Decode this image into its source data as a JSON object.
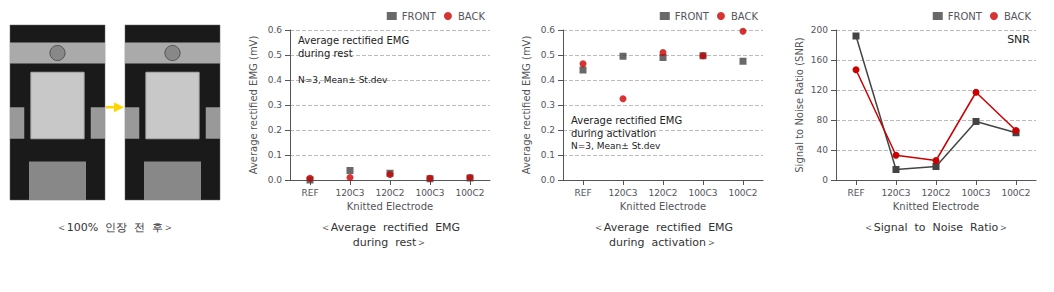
{
  "annotations": [
    "＜100%  인장  전  후＞"
  ],
  "chart_data": [
    {
      "type": "scatter",
      "title": "Average rectified EMG\nduring rest",
      "subtitle": "＜Average  rectified  EMG\nduring  rest＞",
      "annotations": [
        "N=3, Mean± St.dev"
      ],
      "xlabel": "Knitted Electrode",
      "ylabel": "Average rectified EMG (mV)",
      "categories": [
        "REF",
        "120C3",
        "120C2",
        "100C3",
        "100C2"
      ],
      "series": [
        {
          "name": "FRONT",
          "color": "#444444",
          "marker": "square",
          "values": [
            0.0,
            0.038,
            0.027,
            0.005,
            0.008
          ]
        },
        {
          "name": "BACK",
          "color": "#cc0000",
          "marker": "circle",
          "values": [
            0.007,
            0.01,
            0.022,
            0.007,
            0.01
          ]
        }
      ],
      "ylim": [
        0.0,
        0.6
      ],
      "yticks": [
        {
          "value": 0,
          "label": "0.0"
        },
        0.1,
        0.2,
        0.3,
        0.4,
        0.5,
        0.6
      ],
      "grid": true,
      "legend": "upper right"
    },
    {
      "type": "scatter",
      "title": "Average rectified EMG\nduring activation",
      "subtitle": "＜Average  rectified  EMG\nduring  activation＞",
      "annotations": [
        "N=3, Mean± St.dev"
      ],
      "xlabel": "Knitted Electrode",
      "ylabel": "Average rectified EMG (mV)",
      "categories": [
        "REF",
        "120C3",
        "120C2",
        "100C3",
        "100C2"
      ],
      "series": [
        {
          "name": "FRONT",
          "color": "#444444",
          "marker": "square",
          "values": [
            0.44,
            0.495,
            0.49,
            0.497,
            0.475
          ]
        },
        {
          "name": "BACK",
          "color": "#cc0000",
          "marker": "circle",
          "values": [
            0.465,
            0.325,
            0.51,
            0.497,
            0.595
          ]
        }
      ],
      "ylim": [
        0.0,
        0.6
      ],
      "yticks": [
        {
          "value": 0,
          "label": "0.0"
        },
        0.1,
        0.2,
        0.3,
        0.4,
        0.5,
        0.6
      ],
      "grid": true,
      "legend": "upper right"
    },
    {
      "type": "line",
      "subtitle": "＜Signal  to  Noise  Ratio＞",
      "annotations": [
        "SNR"
      ],
      "xlabel": "Knitted Electrode",
      "ylabel": "Signal to Noise Ratio (SNR)",
      "categories": [
        "REF",
        "120C3",
        "120C2",
        "100C3",
        "100C2"
      ],
      "series": [
        {
          "name": "FRONT",
          "color": "#444444",
          "marker": "square",
          "values": [
            192,
            14,
            18,
            78,
            63
          ]
        },
        {
          "name": "BACK",
          "color": "#cc0000",
          "marker": "circle",
          "values": [
            147,
            33,
            26,
            117,
            66
          ]
        }
      ],
      "ylim": [
        0,
        200
      ],
      "yticks": [
        0,
        40,
        80,
        120,
        160,
        200
      ],
      "grid": true,
      "legend": "upper right"
    }
  ]
}
